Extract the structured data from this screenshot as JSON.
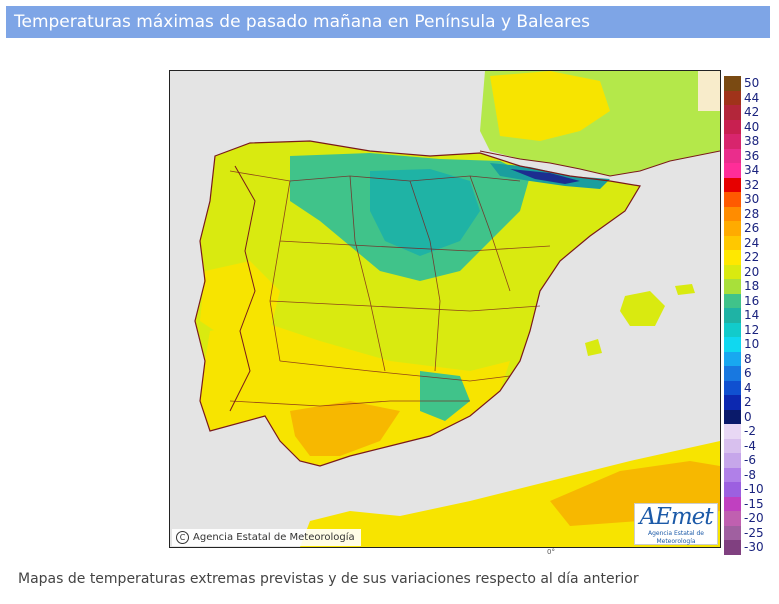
{
  "header": {
    "title": "Temperaturas máximas de pasado mañana en Península y Baleares"
  },
  "map": {
    "copyright": "Agencia Estatal de Meteorología",
    "copyright_symbol": "C",
    "logo_text": "AEmet",
    "logo_subtitle": "Agencia Estatal de Meteorología",
    "corner_mark": "0°",
    "colors": {
      "sea": "#e4e4e4",
      "land_warm": "#f7e400",
      "land_hot": "#f7b800",
      "land_mild": "#b4e84a",
      "land_cool": "#3ecfa3",
      "land_cold": "#1a9e9e",
      "land_very_cold": "#1c2e90",
      "borders": "#7a1a1a",
      "foreign_land": "#f8eccb"
    }
  },
  "legend": {
    "items": [
      {
        "label": "50",
        "color": "#7a4a12"
      },
      {
        "label": "44",
        "color": "#a0331a"
      },
      {
        "label": "42",
        "color": "#b3263a"
      },
      {
        "label": "40",
        "color": "#c82050"
      },
      {
        "label": "38",
        "color": "#d8256d"
      },
      {
        "label": "36",
        "color": "#ea2d8c"
      },
      {
        "label": "34",
        "color": "#ff2d98"
      },
      {
        "label": "32",
        "color": "#e60000"
      },
      {
        "label": "30",
        "color": "#ff5a00"
      },
      {
        "label": "28",
        "color": "#ff8c00"
      },
      {
        "label": "26",
        "color": "#ffab00"
      },
      {
        "label": "24",
        "color": "#ffc800"
      },
      {
        "label": "22",
        "color": "#ffe800"
      },
      {
        "label": "20",
        "color": "#d9ea10"
      },
      {
        "label": "18",
        "color": "#a8e03a"
      },
      {
        "label": "16",
        "color": "#40c38a"
      },
      {
        "label": "14",
        "color": "#1fb3a5"
      },
      {
        "label": "12",
        "color": "#12cbcb"
      },
      {
        "label": "10",
        "color": "#10d8f0"
      },
      {
        "label": "8",
        "color": "#18a8f0"
      },
      {
        "label": "6",
        "color": "#1878e0"
      },
      {
        "label": "4",
        "color": "#1050d0"
      },
      {
        "label": "2",
        "color": "#0c28b0"
      },
      {
        "label": "0",
        "color": "#0a1a6a"
      },
      {
        "label": "-2",
        "color": "#e8d8f4"
      },
      {
        "label": "-4",
        "color": "#d8c0ee"
      },
      {
        "label": "-6",
        "color": "#c6a6ea"
      },
      {
        "label": "-8",
        "color": "#b080e8"
      },
      {
        "label": "-10",
        "color": "#9c60e0"
      },
      {
        "label": "-15",
        "color": "#c040c0"
      },
      {
        "label": "-20",
        "color": "#c060b0"
      },
      {
        "label": "-25",
        "color": "#a060a0"
      },
      {
        "label": "-30",
        "color": "#804080"
      }
    ]
  },
  "footer": {
    "caption": "Mapas de temperaturas extremas previstas y de sus variaciones respecto al día anterior"
  }
}
